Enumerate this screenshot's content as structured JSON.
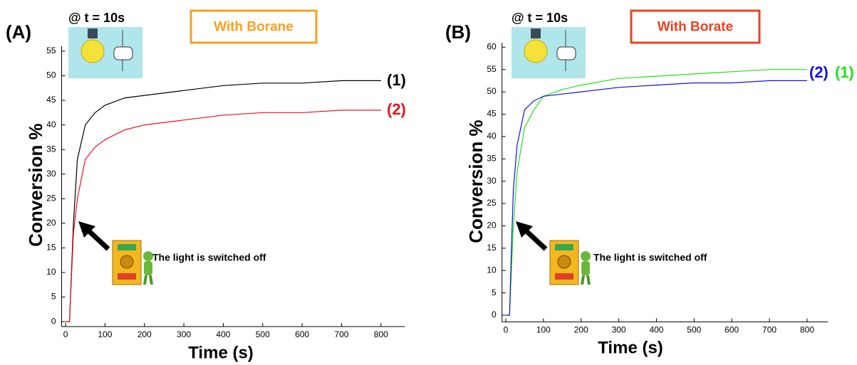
{
  "chart_data": [
    {
      "type": "line",
      "panel_label": "(A)",
      "condition_label": "@ t = 10s",
      "subtitle": "With Borane",
      "subtitle_color": "#f7a020",
      "annotation": "The light is switched off",
      "xlabel": "Time (s)",
      "ylabel": "Conversion %",
      "x": [
        0,
        10,
        15,
        20,
        30,
        50,
        75,
        100,
        150,
        200,
        300,
        400,
        500,
        600,
        700,
        800
      ],
      "series": [
        {
          "name": "(1)",
          "color": "#000000",
          "values": [
            0,
            0,
            10,
            20,
            33,
            40,
            42.5,
            44,
            45.5,
            46,
            47,
            48,
            48.5,
            48.5,
            49,
            49
          ]
        },
        {
          "name": "(2)",
          "color": "#e8141e",
          "values": [
            0,
            0,
            9,
            18,
            25,
            33,
            35.5,
            37,
            39,
            40,
            41,
            42,
            42.5,
            42.5,
            43,
            43
          ]
        }
      ],
      "xlim": [
        -10,
        860
      ],
      "ylim": [
        -1,
        56
      ],
      "xticks": [
        0,
        100,
        200,
        300,
        400,
        500,
        600,
        700,
        800
      ],
      "yticks": [
        0,
        5,
        10,
        15,
        20,
        25,
        30,
        35,
        40,
        45,
        50,
        55
      ]
    },
    {
      "type": "line",
      "panel_label": "(B)",
      "condition_label": "@ t = 10s",
      "subtitle": "With Borate",
      "subtitle_color": "#f0401c",
      "annotation": "The light is switched off",
      "xlabel": "Time (s)",
      "ylabel": "Conversion %",
      "x": [
        0,
        10,
        15,
        20,
        30,
        50,
        75,
        100,
        150,
        200,
        300,
        400,
        500,
        600,
        700,
        800
      ],
      "series": [
        {
          "name": "(1)",
          "color": "#22e01e",
          "values": [
            0,
            0,
            10,
            20,
            32,
            42,
            46,
            49,
            50.5,
            51.5,
            53,
            53.5,
            54,
            54.5,
            55,
            55
          ]
        },
        {
          "name": "(2)",
          "color": "#1414d0",
          "values": [
            0,
            0,
            15,
            28,
            38,
            46,
            48,
            49,
            49.5,
            50,
            51,
            51.5,
            52,
            52,
            52.5,
            52.5
          ]
        }
      ],
      "xlim": [
        -10,
        855
      ],
      "ylim": [
        -1.5,
        61
      ],
      "xticks": [
        0,
        100,
        200,
        300,
        400,
        500,
        600,
        700,
        800
      ],
      "yticks": [
        0,
        5,
        10,
        15,
        20,
        25,
        30,
        35,
        40,
        45,
        50,
        55,
        60
      ]
    }
  ]
}
